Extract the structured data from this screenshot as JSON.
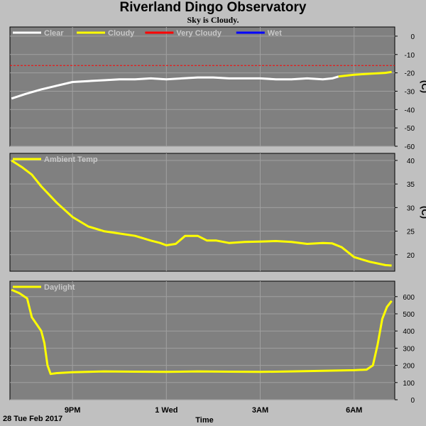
{
  "title": "Riverland Dingo Observatory",
  "subtitle": "Sky is Cloudy.",
  "date_label": "28 Tue Feb 2017",
  "colors": {
    "background": "#c0c0c0",
    "plot_bg": "#808080",
    "grid": "#a0a0a0",
    "clear": "#ffffff",
    "cloudy": "#ffff00",
    "very_cloudy": "#ff0000",
    "wet": "#0000ff"
  },
  "chart_data": [
    {
      "type": "line",
      "name": "sky",
      "legend": [
        {
          "label": "Clear",
          "color": "#ffffff"
        },
        {
          "label": "Cloudy",
          "color": "#ffff00"
        },
        {
          "label": "Very Cloudy",
          "color": "#ff0000"
        },
        {
          "label": "Wet",
          "color": "#0000ff"
        }
      ],
      "ylabel": "(C)",
      "ylim": [
        -60,
        5
      ],
      "yticks": [
        0,
        -10,
        -20,
        -30,
        -40,
        -50,
        -60
      ],
      "threshold": {
        "label": "Very Cloudy",
        "value": -16
      },
      "series": [
        {
          "name": "Clear",
          "color": "#ffffff",
          "x": [
            19.05,
            19.5,
            20.0,
            20.5,
            21.0,
            21.5,
            22.0,
            22.5,
            23.0,
            23.5,
            24.0,
            24.5,
            25.0,
            25.5,
            26.0,
            26.5,
            27.0,
            27.5,
            28.0,
            28.5,
            29.0,
            29.3,
            29.5
          ],
          "y": [
            -34,
            -31.5,
            -29,
            -27,
            -25,
            -24.5,
            -24,
            -23.5,
            -23.5,
            -23,
            -23.5,
            -23,
            -22.5,
            -22.5,
            -23,
            -23,
            -23,
            -23.5,
            -23.5,
            -23,
            -23.5,
            -23,
            -22
          ]
        },
        {
          "name": "Cloudy",
          "color": "#ffff00",
          "x": [
            29.5,
            30.0,
            30.5,
            31.0,
            31.2
          ],
          "y": [
            -22,
            -21,
            -20.5,
            -20,
            -19.5
          ]
        }
      ]
    },
    {
      "type": "line",
      "name": "ambient",
      "legend": [
        {
          "label": "Ambient Temp",
          "color": "#ffff00"
        }
      ],
      "ylabel": "(C)",
      "ylim": [
        16.5,
        41.5
      ],
      "yticks": [
        40,
        35,
        30,
        25,
        20
      ],
      "series": [
        {
          "name": "Ambient Temp",
          "color": "#ffff00",
          "x": [
            19.05,
            19.4,
            19.7,
            20.0,
            20.5,
            21.0,
            21.5,
            22.0,
            22.5,
            23.0,
            23.5,
            23.8,
            24.0,
            24.3,
            24.6,
            25.0,
            25.3,
            25.6,
            26.0,
            26.5,
            27.0,
            27.5,
            28.0,
            28.5,
            29.0,
            29.3,
            29.6,
            30.0,
            30.5,
            31.0,
            31.2
          ],
          "y": [
            40,
            38.5,
            37,
            34.5,
            31,
            28,
            26,
            25,
            24.5,
            24,
            23,
            22.5,
            22,
            22.3,
            24,
            24,
            23,
            23,
            22.5,
            22.7,
            22.8,
            22.9,
            22.7,
            22.3,
            22.5,
            22.4,
            21.6,
            19.5,
            18.5,
            17.8,
            17.7
          ]
        }
      ]
    },
    {
      "type": "line",
      "name": "daylight",
      "legend": [
        {
          "label": "Daylight",
          "color": "#ffff00"
        }
      ],
      "ylim": [
        0,
        690
      ],
      "yticks": [
        600,
        500,
        400,
        300,
        200,
        100,
        0
      ],
      "xticks": [
        {
          "label": "9PM",
          "value": 21
        },
        {
          "label": "1 Wed",
          "value": 24
        },
        {
          "label": "3AM",
          "value": 27
        },
        {
          "label": "6AM",
          "value": 30
        }
      ],
      "xlabel": "Time",
      "series": [
        {
          "name": "Daylight",
          "color": "#ffff00",
          "x": [
            19.05,
            19.3,
            19.55,
            19.7,
            19.85,
            20.0,
            20.1,
            20.2,
            20.3,
            20.5,
            21.0,
            22.0,
            23.0,
            24.0,
            25.0,
            26.0,
            27.0,
            28.0,
            29.0,
            30.0,
            30.4,
            30.6,
            30.75,
            30.9,
            31.05,
            31.2
          ],
          "y": [
            640,
            620,
            590,
            480,
            440,
            400,
            330,
            200,
            150,
            155,
            160,
            165,
            163,
            162,
            165,
            163,
            162,
            165,
            168,
            172,
            175,
            200,
            320,
            470,
            540,
            575
          ]
        }
      ]
    }
  ]
}
